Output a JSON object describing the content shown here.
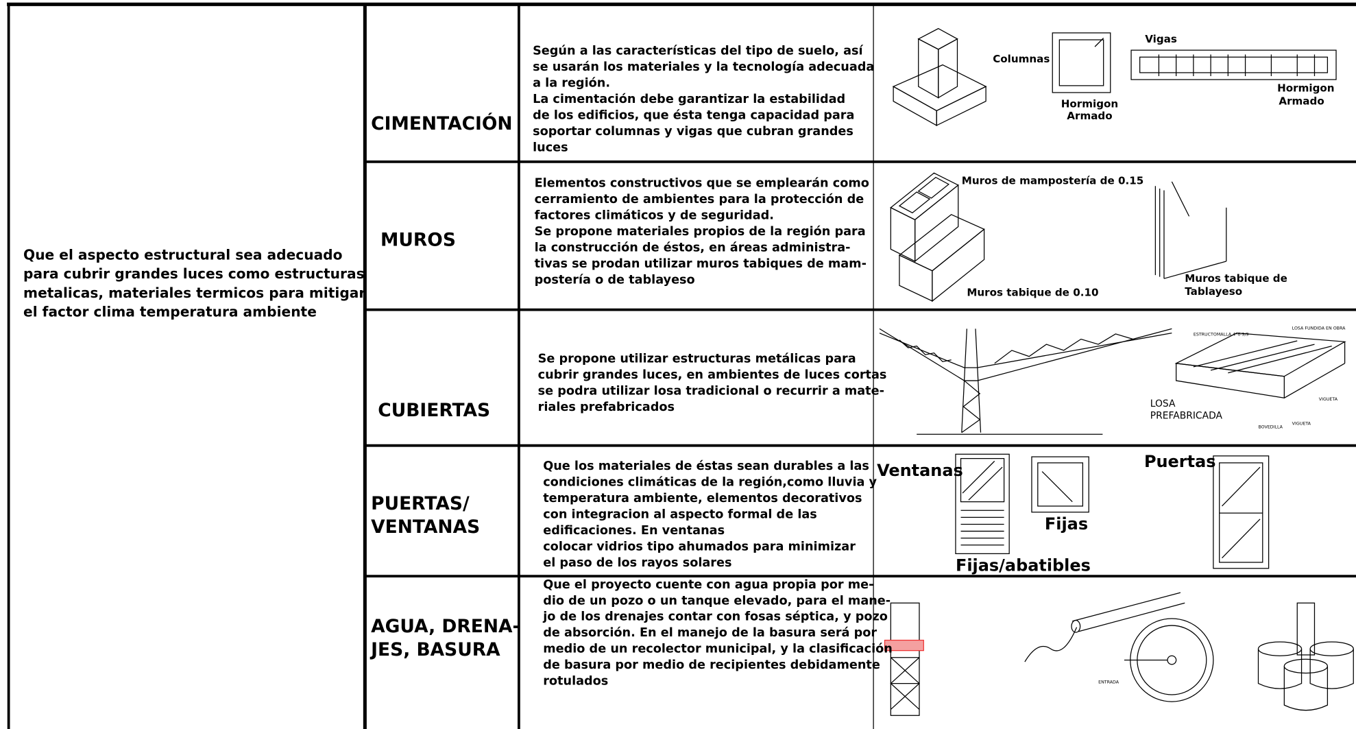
{
  "objective": [
    "Que el aspecto estructural sea adecuado",
    "para cubrir grandes luces como estructuras",
    "metalicas, materiales termicos para mitigar",
    "el factor clima temperatura ambiente"
  ],
  "rows": [
    {
      "category": [
        "CIMENTACIÓN"
      ],
      "description": [
        "Según a las  características del tipo de suelo, así",
        "se usarán los materiales y la tecnología adecuada",
        "a la región.",
        "La cimentación debe garantizar la estabilidad",
        "de los edificios, que ésta tenga capacidad para",
        "soportar columnas y vigas que cubran grandes",
        "luces"
      ],
      "labels": [
        "Columnas",
        "Hormigon",
        "Armado",
        "Vigas",
        "Hormigon",
        "Armado"
      ]
    },
    {
      "category": [
        "MUROS"
      ],
      "description": [
        "Elementos constructivos que se emplearán como",
        "cerramiento de ambientes para la protección de",
        "factores climáticos y de seguridad.",
        "Se propone materiales propios de la región para",
        "la construcción de éstos, en áreas administra-",
        "tivas se prodan utilizar muros tabiques de mam-",
        "postería o de tablayeso"
      ],
      "labels": [
        "Muros de mampostería  de 0.15",
        "Muros tabique de 0.10",
        "Muros tabique de",
        "Tablayeso"
      ]
    },
    {
      "category": [
        "CUBIERTAS"
      ],
      "description": [
        "Se propone utilizar estructuras metálicas para",
        "cubrir grandes luces, en ambientes de luces cortas",
        "se podra utilizar losa tradicional o recurrir a mate-",
        "riales prefabricados"
      ],
      "labels": [
        "ESTRUCTOMALLA 4*6-9/9",
        "LOSA FUNDIDA EN OBRA",
        "LOSA",
        "PREFABRICADA",
        "VIGUETA",
        "VIGUETA",
        "BOVEDILLA"
      ]
    },
    {
      "category": [
        "PUERTAS/",
        "VENTANAS"
      ],
      "description": [
        "Que los  materiales  de éstas sean durables a las",
        "condiciones climáticas de la región,como lluvia y",
        "temperatura ambiente, elementos decorativos",
        "con integracion al aspecto formal de las",
        "edificaciones.  En ventanas",
        "colocar vidrios tipo ahumados para minimizar",
        "el paso de los rayos solares"
      ],
      "labels": [
        "Ventanas",
        "Fijas",
        "Fijas/abatibles",
        "Puertas"
      ]
    },
    {
      "category": [
        "AGUA, DRENA-",
        "JES, BASURA"
      ],
      "description": [
        "Que el proyecto cuente con agua propia por me-",
        "dio de un pozo o un tanque elevado, para el mane-",
        "jo de los drenajes contar con fosas séptica, y pozo",
        "de absorción. En el manejo de la basura será por",
        "medio de un recolector municipal, y la clasificación",
        "de basura por medio de recipientes debidamente",
        "rotulados"
      ],
      "labels": [
        "ENTRADA"
      ]
    }
  ]
}
